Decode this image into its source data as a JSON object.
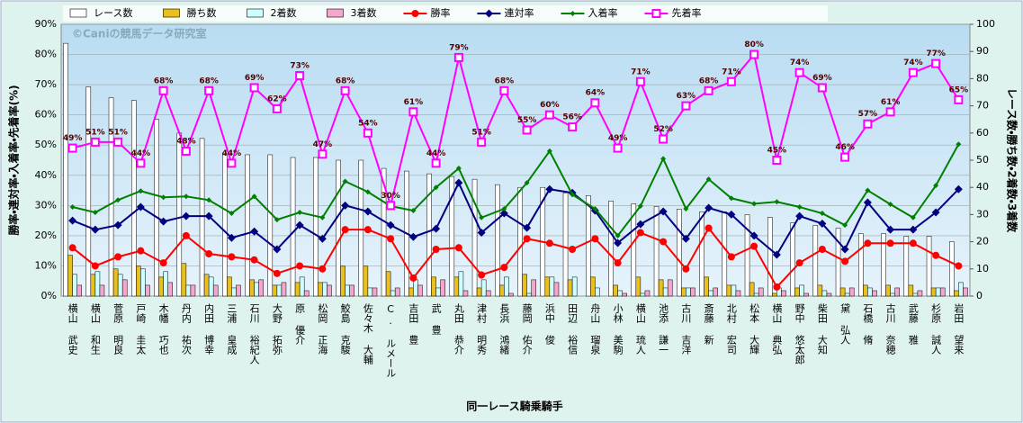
{
  "chart_data": {
    "type": "bar_line",
    "watermark": "©Caniの競馬データ研究室",
    "x_label": "同一レース騎乗騎手",
    "y_label": "勝率・連対率・入着率・先着率(%)",
    "y2_label": "レース数・勝ち数・2着数・3着数",
    "categories": [
      "横山 武史",
      "横山 和生",
      "菅原 明良",
      "戸崎 圭太",
      "木幡 巧也",
      "丹内 祐次",
      "内田 博幸",
      "三浦 皇成",
      "石川 裕紀人",
      "大野 拓弥",
      "原 優介",
      "松岡 正海",
      "鮫島 克駿",
      "佐々木 大輔",
      "C. ルメール",
      "吉田 豊",
      "武 豊",
      "丸田 恭介",
      "津村 明秀",
      "長浜 鴻緒",
      "藤岡 佑介",
      "浜中 俊",
      "田辺 裕信",
      "舟山 瑠泉",
      "小林 美駒",
      "横山 琉人",
      "池添 謙一",
      "古川 吉洋",
      "斎藤 新",
      "北村 宏司",
      "松本 大輝",
      "横山 典弘",
      "野中 悠太郎",
      "柴田 大知",
      "黛 弘人",
      "石橋 脩",
      "古川 奈穂",
      "武藤 雅",
      "杉原 誠人",
      "岩田 望来"
    ],
    "ylim": [
      0,
      90
    ],
    "yticks": [
      {
        "value": 0,
        "label": "0%"
      },
      {
        "value": 10,
        "label": "10%"
      },
      {
        "value": 20,
        "label": "20%"
      },
      {
        "value": 30,
        "label": "30%"
      },
      {
        "value": 40,
        "label": "40%"
      },
      {
        "value": 50,
        "label": "50%"
      },
      {
        "value": 60,
        "label": "60%"
      },
      {
        "value": 70,
        "label": "70%"
      },
      {
        "value": 80,
        "label": "80%"
      },
      {
        "value": 90,
        "label": "90%"
      }
    ],
    "y2lim": [
      0,
      100
    ],
    "y2ticks": [
      0,
      10,
      20,
      30,
      40,
      50,
      60,
      70,
      80,
      90,
      100
    ],
    "grid": true,
    "series": [
      {
        "name": "レース数",
        "kind": "bar",
        "axis": "y2",
        "color": "#ffffff",
        "values": [
          93,
          77,
          73,
          72,
          65,
          60,
          58,
          52,
          52,
          52,
          51,
          51,
          50,
          50,
          47,
          46,
          45,
          44,
          43,
          41,
          40,
          40,
          38,
          37,
          35,
          34,
          33,
          32,
          31,
          31,
          30,
          29,
          27,
          26,
          25,
          23,
          23,
          22,
          22,
          20
        ]
      },
      {
        "name": "勝ち数",
        "kind": "bar",
        "axis": "y2",
        "color": "#e8c020",
        "values": [
          15,
          8,
          10,
          11,
          7,
          12,
          8,
          7,
          6,
          4,
          5,
          5,
          11,
          11,
          9,
          3,
          7,
          7,
          3,
          4,
          8,
          7,
          6,
          7,
          4,
          7,
          6,
          3,
          7,
          4,
          5,
          1,
          3,
          4,
          3,
          4,
          4,
          4,
          3,
          2
        ]
      },
      {
        "name": "2着数",
        "kind": "bar",
        "axis": "y2",
        "color": "#ccffff",
        "values": [
          8,
          9,
          8,
          10,
          9,
          4,
          7,
          3,
          5,
          4,
          7,
          5,
          4,
          3,
          2,
          6,
          3,
          9,
          6,
          7,
          1,
          7,
          7,
          3,
          2,
          1,
          3,
          3,
          2,
          4,
          1,
          3,
          4,
          2,
          1,
          3,
          1,
          1,
          3,
          5
        ]
      },
      {
        "name": "3着数",
        "kind": "bar",
        "axis": "y2",
        "color": "#f4a6cc",
        "values": [
          4,
          4,
          6,
          4,
          5,
          4,
          4,
          4,
          6,
          5,
          2,
          4,
          4,
          3,
          3,
          4,
          6,
          2,
          2,
          1,
          6,
          5,
          0,
          0,
          1,
          2,
          6,
          3,
          3,
          2,
          3,
          2,
          1,
          1,
          3,
          2,
          3,
          2,
          3,
          3
        ]
      },
      {
        "name": "勝率",
        "kind": "line",
        "marker": "circle",
        "color": "#ff0000",
        "values": [
          16,
          10,
          13,
          15,
          11,
          20,
          14,
          13,
          12,
          7.5,
          10,
          9,
          22,
          22,
          19,
          6,
          15.5,
          16,
          7,
          9.5,
          19,
          17.5,
          15.5,
          19,
          11,
          21,
          18,
          9,
          22.5,
          13,
          16.5,
          3,
          11,
          15.5,
          11.5,
          17.5,
          17.5,
          17.5,
          13.5,
          10
        ]
      },
      {
        "name": "連対率",
        "kind": "line",
        "marker": "diamond",
        "color": "#000080",
        "values": [
          25,
          22,
          23.5,
          29.5,
          24.7,
          26.5,
          26.5,
          19.3,
          21.4,
          15.5,
          23.5,
          19,
          30,
          28,
          23.5,
          19.6,
          22.3,
          37.5,
          21,
          27.4,
          22.6,
          35.4,
          34.2,
          28.3,
          17.6,
          23.8,
          28,
          19,
          29.2,
          27,
          20,
          13.7,
          26.5,
          24,
          15.5,
          31,
          22,
          22,
          27.7,
          35.4
        ]
      },
      {
        "name": "入着率",
        "kind": "line",
        "marker": "small-diamond",
        "color": "#008000",
        "values": [
          29.5,
          27.7,
          31.8,
          34.8,
          32.7,
          33,
          31.8,
          27.4,
          33,
          25.3,
          27.7,
          26,
          38,
          34.5,
          29.8,
          28.3,
          36,
          42.3,
          26,
          28.9,
          37.5,
          48,
          33.6,
          28.9,
          20,
          29.8,
          45.5,
          28.9,
          38.7,
          32.4,
          30.6,
          31.2,
          29.5,
          27.4,
          23.5,
          35,
          30.4,
          26,
          36.6,
          50.3
        ]
      },
      {
        "name": "先着率",
        "kind": "line",
        "marker": "square",
        "color": "#ff00ff",
        "values": [
          49,
          51,
          51,
          44,
          68,
          48,
          68,
          44,
          69,
          62,
          73,
          47,
          68,
          54,
          30,
          61,
          44,
          79,
          51,
          68,
          55,
          60,
          56,
          64,
          49,
          71,
          52,
          63,
          68,
          71,
          80,
          45,
          74,
          69,
          46,
          57,
          61,
          74,
          77,
          65
        ],
        "value_labels": [
          "49%",
          "51%",
          "51%",
          "44%",
          "68%",
          "48%",
          "68%",
          "44%",
          "69%",
          "62%",
          "73%",
          "47%",
          "68%",
          "54%",
          "30%",
          "61%",
          "44%",
          "79%",
          "51%",
          "68%",
          "55%",
          "60%",
          "56%",
          "64%",
          "49%",
          "71%",
          "52%",
          "63%",
          "68%",
          "71%",
          "80%",
          "45%",
          "74%",
          "69%",
          "46%",
          "57%",
          "61%",
          "74%",
          "77%",
          "65%"
        ]
      }
    ]
  }
}
